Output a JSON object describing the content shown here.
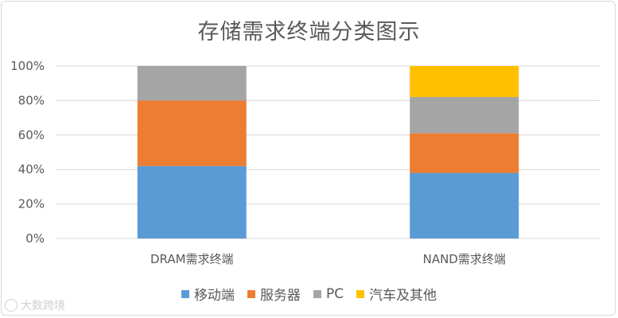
{
  "chart_data": {
    "type": "bar",
    "stacked": true,
    "title": "存储需求终端分类图示",
    "categories": [
      "DRAM需求终端",
      "NAND需求终端"
    ],
    "series": [
      {
        "name": "移动端",
        "color": "#5b9bd5",
        "values": [
          42,
          38
        ]
      },
      {
        "name": "服务器",
        "color": "#ed7d31",
        "values": [
          38,
          23
        ]
      },
      {
        "name": "PC",
        "color": "#a5a5a5",
        "values": [
          20,
          21
        ]
      },
      {
        "name": "汽车及其他",
        "color": "#ffc000",
        "values": [
          0,
          18
        ]
      }
    ],
    "ylim": [
      0,
      100
    ],
    "yticks": [
      "0%",
      "20%",
      "40%",
      "60%",
      "80%",
      "100%"
    ],
    "grid": true,
    "legend_position": "bottom"
  },
  "watermark": {
    "text": "大数跨境"
  }
}
